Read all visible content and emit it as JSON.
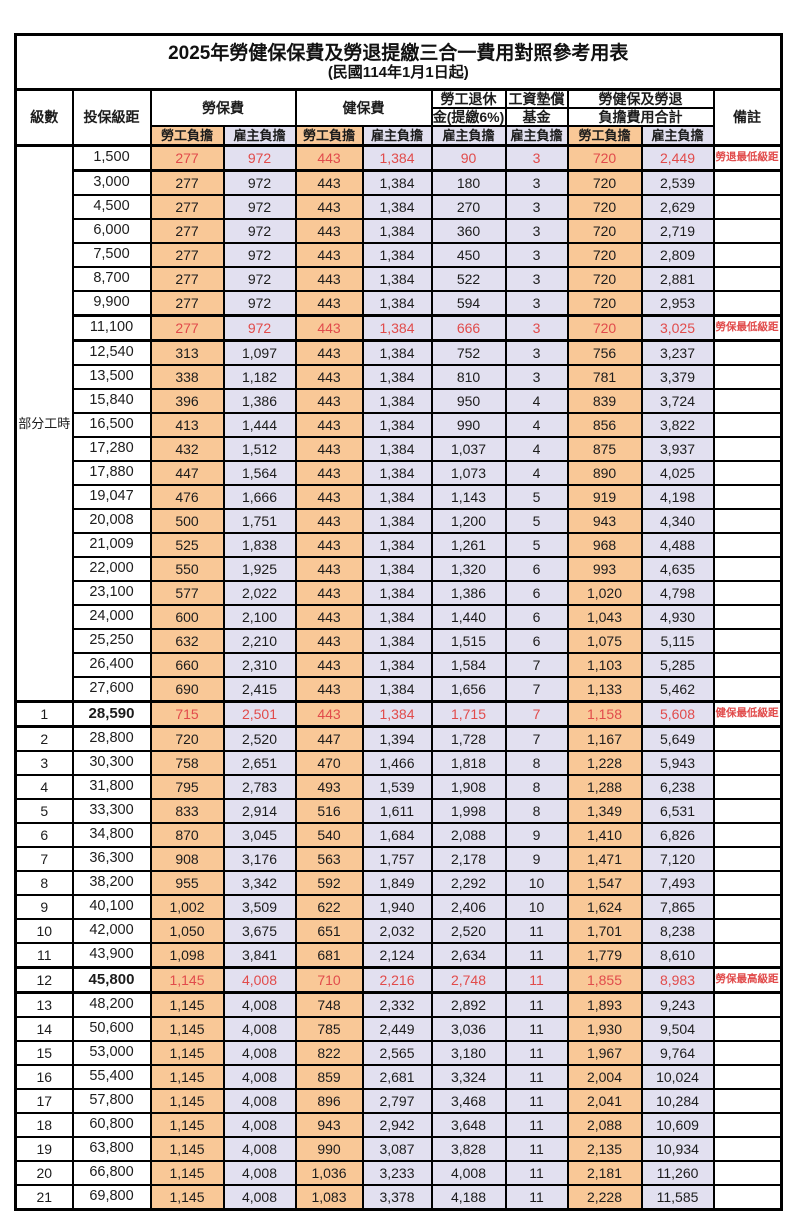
{
  "title": "2025年勞健保保費及勞退提繳三合一費用對照參考用表",
  "subtitle": "(民國114年1月1日起)",
  "header": {
    "level": "級數",
    "bracket": "投保級距",
    "labor_insurance": "勞保費",
    "health_insurance": "健保費",
    "pension_line1": "勞工退休",
    "pension_line2": "金(提繳6%)",
    "wage_fund_line1": "工資墊償",
    "wage_fund_line2": "基金",
    "total_line1": "勞健保及勞退",
    "total_line2": "負擔費用合計",
    "note": "備註",
    "employee": "勞工負擔",
    "employer": "雇主負擔"
  },
  "part_time_label": "部分工時",
  "part_time_span": 23,
  "colors": {
    "employee_bg": "#F9C897",
    "employer_bg": "#E2E0F0",
    "highlight_red": "#E14B4B",
    "border": "#000000"
  },
  "rows": [
    {
      "lv": "",
      "b": "1,500",
      "v": [
        "277",
        "972",
        "443",
        "1,384",
        "90",
        "3",
        "720",
        "2,449"
      ],
      "n": "勞退最低級距",
      "red": true,
      "special": true,
      "bb": false
    },
    {
      "lv": "",
      "b": "3,000",
      "v": [
        "277",
        "972",
        "443",
        "1,384",
        "180",
        "3",
        "720",
        "2,539"
      ],
      "n": "",
      "red": false,
      "special": false,
      "bb": false
    },
    {
      "lv": "",
      "b": "4,500",
      "v": [
        "277",
        "972",
        "443",
        "1,384",
        "270",
        "3",
        "720",
        "2,629"
      ],
      "n": "",
      "red": false,
      "special": false,
      "bb": false
    },
    {
      "lv": "",
      "b": "6,000",
      "v": [
        "277",
        "972",
        "443",
        "1,384",
        "360",
        "3",
        "720",
        "2,719"
      ],
      "n": "",
      "red": false,
      "special": false,
      "bb": false
    },
    {
      "lv": "",
      "b": "7,500",
      "v": [
        "277",
        "972",
        "443",
        "1,384",
        "450",
        "3",
        "720",
        "2,809"
      ],
      "n": "",
      "red": false,
      "special": false,
      "bb": false
    },
    {
      "lv": "",
      "b": "8,700",
      "v": [
        "277",
        "972",
        "443",
        "1,384",
        "522",
        "3",
        "720",
        "2,881"
      ],
      "n": "",
      "red": false,
      "special": false,
      "bb": false
    },
    {
      "lv": "",
      "b": "9,900",
      "v": [
        "277",
        "972",
        "443",
        "1,384",
        "594",
        "3",
        "720",
        "2,953"
      ],
      "n": "",
      "red": false,
      "special": false,
      "bb": false
    },
    {
      "lv": "",
      "b": "11,100",
      "v": [
        "277",
        "972",
        "443",
        "1,384",
        "666",
        "3",
        "720",
        "3,025"
      ],
      "n": "勞保最低級距",
      "red": true,
      "special": true,
      "bb": false
    },
    {
      "lv": "",
      "b": "12,540",
      "v": [
        "313",
        "1,097",
        "443",
        "1,384",
        "752",
        "3",
        "756",
        "3,237"
      ],
      "n": "",
      "red": false,
      "special": false,
      "bb": false
    },
    {
      "lv": "",
      "b": "13,500",
      "v": [
        "338",
        "1,182",
        "443",
        "1,384",
        "810",
        "3",
        "781",
        "3,379"
      ],
      "n": "",
      "red": false,
      "special": false,
      "bb": false
    },
    {
      "lv": "",
      "b": "15,840",
      "v": [
        "396",
        "1,386",
        "443",
        "1,384",
        "950",
        "4",
        "839",
        "3,724"
      ],
      "n": "",
      "red": false,
      "special": false,
      "bb": false
    },
    {
      "lv": "",
      "b": "16,500",
      "v": [
        "413",
        "1,444",
        "443",
        "1,384",
        "990",
        "4",
        "856",
        "3,822"
      ],
      "n": "",
      "red": false,
      "special": false,
      "bb": false
    },
    {
      "lv": "",
      "b": "17,280",
      "v": [
        "432",
        "1,512",
        "443",
        "1,384",
        "1,037",
        "4",
        "875",
        "3,937"
      ],
      "n": "",
      "red": false,
      "special": false,
      "bb": false
    },
    {
      "lv": "",
      "b": "17,880",
      "v": [
        "447",
        "1,564",
        "443",
        "1,384",
        "1,073",
        "4",
        "890",
        "4,025"
      ],
      "n": "",
      "red": false,
      "special": false,
      "bb": false
    },
    {
      "lv": "",
      "b": "19,047",
      "v": [
        "476",
        "1,666",
        "443",
        "1,384",
        "1,143",
        "5",
        "919",
        "4,198"
      ],
      "n": "",
      "red": false,
      "special": false,
      "bb": false
    },
    {
      "lv": "",
      "b": "20,008",
      "v": [
        "500",
        "1,751",
        "443",
        "1,384",
        "1,200",
        "5",
        "943",
        "4,340"
      ],
      "n": "",
      "red": false,
      "special": false,
      "bb": false
    },
    {
      "lv": "",
      "b": "21,009",
      "v": [
        "525",
        "1,838",
        "443",
        "1,384",
        "1,261",
        "5",
        "968",
        "4,488"
      ],
      "n": "",
      "red": false,
      "special": false,
      "bb": false
    },
    {
      "lv": "",
      "b": "22,000",
      "v": [
        "550",
        "1,925",
        "443",
        "1,384",
        "1,320",
        "6",
        "993",
        "4,635"
      ],
      "n": "",
      "red": false,
      "special": false,
      "bb": false
    },
    {
      "lv": "",
      "b": "23,100",
      "v": [
        "577",
        "2,022",
        "443",
        "1,384",
        "1,386",
        "6",
        "1,020",
        "4,798"
      ],
      "n": "",
      "red": false,
      "special": false,
      "bb": false
    },
    {
      "lv": "",
      "b": "24,000",
      "v": [
        "600",
        "2,100",
        "443",
        "1,384",
        "1,440",
        "6",
        "1,043",
        "4,930"
      ],
      "n": "",
      "red": false,
      "special": false,
      "bb": false
    },
    {
      "lv": "",
      "b": "25,250",
      "v": [
        "632",
        "2,210",
        "443",
        "1,384",
        "1,515",
        "6",
        "1,075",
        "5,115"
      ],
      "n": "",
      "red": false,
      "special": false,
      "bb": false
    },
    {
      "lv": "",
      "b": "26,400",
      "v": [
        "660",
        "2,310",
        "443",
        "1,384",
        "1,584",
        "7",
        "1,103",
        "5,285"
      ],
      "n": "",
      "red": false,
      "special": false,
      "bb": false
    },
    {
      "lv": "",
      "b": "27,600",
      "v": [
        "690",
        "2,415",
        "443",
        "1,384",
        "1,656",
        "7",
        "1,133",
        "5,462"
      ],
      "n": "",
      "red": false,
      "special": false,
      "bb": false
    },
    {
      "lv": "1",
      "b": "28,590",
      "v": [
        "715",
        "2,501",
        "443",
        "1,384",
        "1,715",
        "7",
        "1,158",
        "5,608"
      ],
      "n": "健保最低級距",
      "red": true,
      "special": true,
      "bb": true
    },
    {
      "lv": "2",
      "b": "28,800",
      "v": [
        "720",
        "2,520",
        "447",
        "1,394",
        "1,728",
        "7",
        "1,167",
        "5,649"
      ],
      "n": "",
      "red": false,
      "special": false,
      "bb": false
    },
    {
      "lv": "3",
      "b": "30,300",
      "v": [
        "758",
        "2,651",
        "470",
        "1,466",
        "1,818",
        "8",
        "1,228",
        "5,943"
      ],
      "n": "",
      "red": false,
      "special": false,
      "bb": false
    },
    {
      "lv": "4",
      "b": "31,800",
      "v": [
        "795",
        "2,783",
        "493",
        "1,539",
        "1,908",
        "8",
        "1,288",
        "6,238"
      ],
      "n": "",
      "red": false,
      "special": false,
      "bb": false
    },
    {
      "lv": "5",
      "b": "33,300",
      "v": [
        "833",
        "2,914",
        "516",
        "1,611",
        "1,998",
        "8",
        "1,349",
        "6,531"
      ],
      "n": "",
      "red": false,
      "special": false,
      "bb": false
    },
    {
      "lv": "6",
      "b": "34,800",
      "v": [
        "870",
        "3,045",
        "540",
        "1,684",
        "2,088",
        "9",
        "1,410",
        "6,826"
      ],
      "n": "",
      "red": false,
      "special": false,
      "bb": false
    },
    {
      "lv": "7",
      "b": "36,300",
      "v": [
        "908",
        "3,176",
        "563",
        "1,757",
        "2,178",
        "9",
        "1,471",
        "7,120"
      ],
      "n": "",
      "red": false,
      "special": false,
      "bb": false
    },
    {
      "lv": "8",
      "b": "38,200",
      "v": [
        "955",
        "3,342",
        "592",
        "1,849",
        "2,292",
        "10",
        "1,547",
        "7,493"
      ],
      "n": "",
      "red": false,
      "special": false,
      "bb": false
    },
    {
      "lv": "9",
      "b": "40,100",
      "v": [
        "1,002",
        "3,509",
        "622",
        "1,940",
        "2,406",
        "10",
        "1,624",
        "7,865"
      ],
      "n": "",
      "red": false,
      "special": false,
      "bb": false
    },
    {
      "lv": "10",
      "b": "42,000",
      "v": [
        "1,050",
        "3,675",
        "651",
        "2,032",
        "2,520",
        "11",
        "1,701",
        "8,238"
      ],
      "n": "",
      "red": false,
      "special": false,
      "bb": false
    },
    {
      "lv": "11",
      "b": "43,900",
      "v": [
        "1,098",
        "3,841",
        "681",
        "2,124",
        "2,634",
        "11",
        "1,779",
        "8,610"
      ],
      "n": "",
      "red": false,
      "special": false,
      "bb": false
    },
    {
      "lv": "12",
      "b": "45,800",
      "v": [
        "1,145",
        "4,008",
        "710",
        "2,216",
        "2,748",
        "11",
        "1,855",
        "8,983"
      ],
      "n": "勞保最高級距",
      "red": true,
      "special": true,
      "bb": true
    },
    {
      "lv": "13",
      "b": "48,200",
      "v": [
        "1,145",
        "4,008",
        "748",
        "2,332",
        "2,892",
        "11",
        "1,893",
        "9,243"
      ],
      "n": "",
      "red": false,
      "special": false,
      "bb": false
    },
    {
      "lv": "14",
      "b": "50,600",
      "v": [
        "1,145",
        "4,008",
        "785",
        "2,449",
        "3,036",
        "11",
        "1,930",
        "9,504"
      ],
      "n": "",
      "red": false,
      "special": false,
      "bb": false
    },
    {
      "lv": "15",
      "b": "53,000",
      "v": [
        "1,145",
        "4,008",
        "822",
        "2,565",
        "3,180",
        "11",
        "1,967",
        "9,764"
      ],
      "n": "",
      "red": false,
      "special": false,
      "bb": false
    },
    {
      "lv": "16",
      "b": "55,400",
      "v": [
        "1,145",
        "4,008",
        "859",
        "2,681",
        "3,324",
        "11",
        "2,004",
        "10,024"
      ],
      "n": "",
      "red": false,
      "special": false,
      "bb": false
    },
    {
      "lv": "17",
      "b": "57,800",
      "v": [
        "1,145",
        "4,008",
        "896",
        "2,797",
        "3,468",
        "11",
        "2,041",
        "10,284"
      ],
      "n": "",
      "red": false,
      "special": false,
      "bb": false
    },
    {
      "lv": "18",
      "b": "60,800",
      "v": [
        "1,145",
        "4,008",
        "943",
        "2,942",
        "3,648",
        "11",
        "2,088",
        "10,609"
      ],
      "n": "",
      "red": false,
      "special": false,
      "bb": false
    },
    {
      "lv": "19",
      "b": "63,800",
      "v": [
        "1,145",
        "4,008",
        "990",
        "3,087",
        "3,828",
        "11",
        "2,135",
        "10,934"
      ],
      "n": "",
      "red": false,
      "special": false,
      "bb": false
    },
    {
      "lv": "20",
      "b": "66,800",
      "v": [
        "1,145",
        "4,008",
        "1,036",
        "3,233",
        "4,008",
        "11",
        "2,181",
        "11,260"
      ],
      "n": "",
      "red": false,
      "special": false,
      "bb": false
    },
    {
      "lv": "21",
      "b": "69,800",
      "v": [
        "1,145",
        "4,008",
        "1,083",
        "3,378",
        "4,188",
        "11",
        "2,228",
        "11,585"
      ],
      "n": "",
      "red": false,
      "special": false,
      "bb": false
    }
  ]
}
